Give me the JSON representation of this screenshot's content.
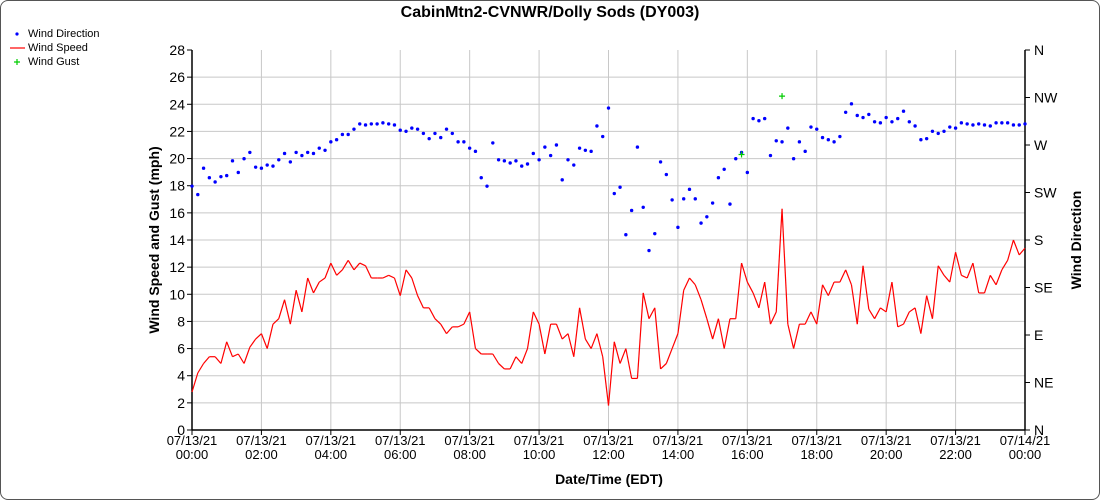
{
  "chart_data": {
    "type": "line",
    "title": "CabinMtn2-CVNWR/Dolly Sods (DY003)",
    "xlabel": "Date/Time (EDT)",
    "ylabel": "Wind Speed and Gust (mph)",
    "y2label": "Wind Direction",
    "ylim": [
      0,
      28
    ],
    "y_ticks": [
      "0",
      "2",
      "4",
      "6",
      "8",
      "10",
      "12",
      "14",
      "16",
      "18",
      "20",
      "22",
      "24",
      "26",
      "28"
    ],
    "y2_ticks": [
      "N",
      "NE",
      "E",
      "SE",
      "S",
      "SW",
      "W",
      "NW",
      "N"
    ],
    "y2lim_degrees": [
      0,
      360
    ],
    "x_ticks": [
      [
        "07/13/21",
        "00:00"
      ],
      [
        "07/13/21",
        "02:00"
      ],
      [
        "07/13/21",
        "04:00"
      ],
      [
        "07/13/21",
        "06:00"
      ],
      [
        "07/13/21",
        "08:00"
      ],
      [
        "07/13/21",
        "10:00"
      ],
      [
        "07/13/21",
        "12:00"
      ],
      [
        "07/13/21",
        "14:00"
      ],
      [
        "07/13/21",
        "16:00"
      ],
      [
        "07/13/21",
        "18:00"
      ],
      [
        "07/13/21",
        "20:00"
      ],
      [
        "07/13/21",
        "22:00"
      ],
      [
        "07/14/21",
        "00:00"
      ]
    ],
    "x_start": "07/13/21 00:00",
    "x_end": "07/14/21 00:00",
    "sample_interval_minutes": 10,
    "grid": true,
    "legend_position": "top-left",
    "series": [
      {
        "name": "Wind Direction",
        "kind": "scatter",
        "axis": "right",
        "units": "degrees",
        "color": "#0000ff",
        "values": [
          231,
          223,
          248,
          239,
          235,
          240,
          241,
          255,
          244,
          257,
          263,
          249,
          248,
          251,
          250,
          256,
          262,
          254,
          263,
          260,
          263,
          262,
          267,
          265,
          273,
          275,
          280,
          280,
          285,
          290,
          289,
          290,
          290,
          291,
          290,
          289,
          284,
          283,
          286,
          285,
          281,
          276,
          281,
          277,
          285,
          281,
          273,
          273,
          267,
          264,
          239,
          231,
          272,
          256,
          255,
          253,
          255,
          250,
          252,
          262,
          256,
          268,
          260,
          270,
          237,
          256,
          251,
          267,
          265,
          264,
          288,
          278,
          305,
          224,
          230,
          185,
          208,
          268,
          211,
          170,
          186,
          254,
          242,
          218,
          192,
          219,
          228,
          219,
          196,
          202,
          215,
          239,
          247,
          214,
          257,
          263,
          244,
          295,
          293,
          295,
          260,
          274,
          273,
          286,
          257,
          273,
          264,
          287,
          285,
          277,
          275,
          273,
          278,
          301,
          309,
          298,
          296,
          299,
          292,
          291,
          296,
          292,
          295,
          302,
          292,
          288,
          275,
          276,
          283,
          281,
          283,
          287,
          286,
          291,
          290,
          289,
          290,
          289,
          288,
          291,
          291,
          291,
          289,
          289,
          290
        ]
      },
      {
        "name": "Wind Speed",
        "kind": "line",
        "axis": "left",
        "units": "mph",
        "color": "#ff0000",
        "values": [
          2.8,
          4.2,
          4.9,
          5.4,
          5.4,
          4.9,
          6.5,
          5.4,
          5.6,
          4.9,
          6.1,
          6.7,
          7.1,
          6.0,
          7.8,
          8.2,
          9.6,
          7.8,
          10.3,
          8.7,
          11.2,
          10.1,
          10.9,
          11.2,
          12.3,
          11.4,
          11.8,
          12.5,
          11.8,
          12.3,
          12.1,
          11.2,
          11.2,
          11.2,
          11.4,
          11.2,
          9.9,
          11.8,
          11.2,
          9.9,
          9.0,
          9.0,
          8.2,
          7.8,
          7.1,
          7.6,
          7.6,
          7.8,
          8.7,
          6.0,
          5.6,
          5.6,
          5.6,
          4.9,
          4.5,
          4.5,
          5.4,
          4.9,
          6.0,
          8.7,
          7.8,
          5.6,
          7.8,
          7.8,
          6.7,
          7.1,
          5.4,
          9.0,
          6.7,
          6.0,
          7.1,
          5.4,
          1.8,
          6.5,
          4.9,
          6.0,
          3.8,
          3.8,
          10.1,
          8.2,
          9.0,
          4.5,
          4.9,
          6.0,
          7.1,
          10.3,
          11.2,
          10.7,
          9.6,
          8.2,
          6.7,
          8.2,
          6.0,
          8.2,
          8.2,
          12.3,
          10.9,
          10.1,
          9.0,
          10.9,
          7.8,
          8.7,
          16.3,
          7.8,
          6.0,
          7.8,
          7.8,
          8.7,
          7.8,
          10.7,
          9.9,
          10.9,
          10.9,
          11.8,
          10.7,
          7.8,
          12.1,
          8.9,
          8.2,
          9.0,
          8.7,
          10.9,
          7.6,
          7.8,
          8.7,
          9.0,
          7.1,
          9.9,
          8.2,
          12.1,
          11.4,
          10.9,
          13.1,
          11.4,
          11.2,
          12.3,
          10.1,
          10.1,
          11.4,
          10.7,
          11.8,
          12.5,
          14.0,
          12.9,
          13.4
        ]
      },
      {
        "name": "Wind Gust",
        "kind": "scatter",
        "axis": "left",
        "units": "mph",
        "color": "#00cc00",
        "points": [
          {
            "time": "07/13/21 15:50",
            "value": 20.3
          },
          {
            "time": "07/13/21 17:00",
            "value": 24.6
          }
        ]
      }
    ]
  }
}
